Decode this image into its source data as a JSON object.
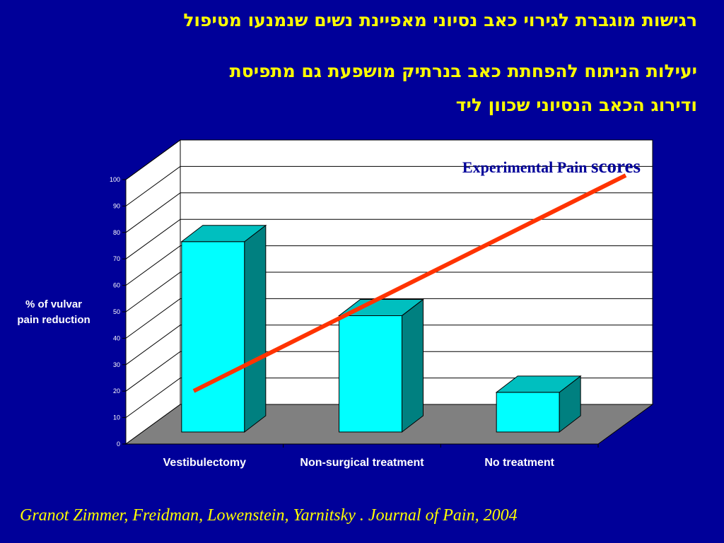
{
  "slide": {
    "title_line1": "רגישות מוגברת לגירוי כאב נסיוני מאפיינת נשים שנמנעו מטיפול",
    "title_line2": "יעילות הניתוח להפחתת כאב  בנרתיק מושפעת גם מתפיסת",
    "title_line3": "ודירוג הכאב הנסיוני שכוון ליד",
    "citation": "Granot Zimmer, Freidman, Lowenstein, Yarnitsky . Journal of Pain, 2004"
  },
  "chart_data": {
    "type": "bar",
    "categories": [
      "Vestibulectomy",
      "Non-surgical treatment",
      "No treatment"
    ],
    "values": [
      72,
      44,
      15
    ],
    "ylabel": "% of vulvar pain reduction",
    "ylabel_lines": [
      "% of vulvar",
      "pain reduction"
    ],
    "ylim": [
      0,
      100
    ],
    "yticks": [
      "0",
      "10",
      "20",
      "30",
      "40",
      "50",
      "60",
      "70",
      "80",
      "90",
      "100"
    ],
    "grid": true,
    "annotation": {
      "text_main": "Experimental Pain ",
      "text_big": "scores"
    },
    "colors": {
      "bar_front": "#00FFFF",
      "bar_side": "#008080",
      "bar_top": "#00BFBF",
      "floor": "#808080",
      "wall": "#FFFFFF",
      "trend": "#FF3300"
    }
  }
}
